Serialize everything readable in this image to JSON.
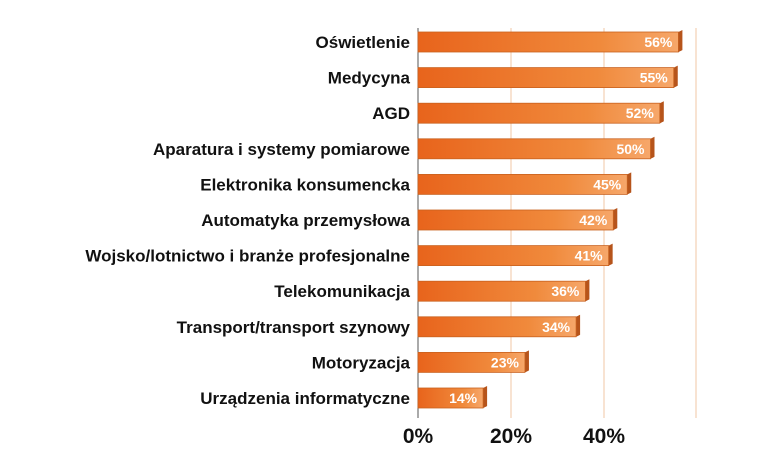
{
  "chart_data": {
    "type": "bar",
    "orientation": "horizontal",
    "title": "",
    "xlabel": "",
    "ylabel": "",
    "xlim": [
      0,
      60
    ],
    "xticks": [
      0,
      20,
      40
    ],
    "xtick_labels": [
      "0%",
      "20%",
      "40%"
    ],
    "grid": true,
    "categories": [
      "Oświetlenie",
      "Medycyna",
      "AGD",
      "Aparatura i systemy pomiarowe",
      "Elektronika konsumencka",
      "Automatyka przemysłowa",
      "Wojsko/lotnictwo i branże profesjonalne",
      "Telekomunikacja",
      "Transport/transport szynowy",
      "Motoryzacja",
      "Urządzenia informatyczne"
    ],
    "values": [
      56,
      55,
      52,
      50,
      45,
      42,
      41,
      36,
      34,
      23,
      14
    ],
    "value_labels": [
      "56%",
      "55%",
      "52%",
      "50%",
      "45%",
      "42%",
      "41%",
      "36%",
      "34%",
      "23%",
      "14%"
    ],
    "colors": {
      "bar": "#f08a3c",
      "bar_light": "#f6a76a",
      "bar_dark": "#b6541b",
      "grid": "#f2c7a6"
    }
  }
}
